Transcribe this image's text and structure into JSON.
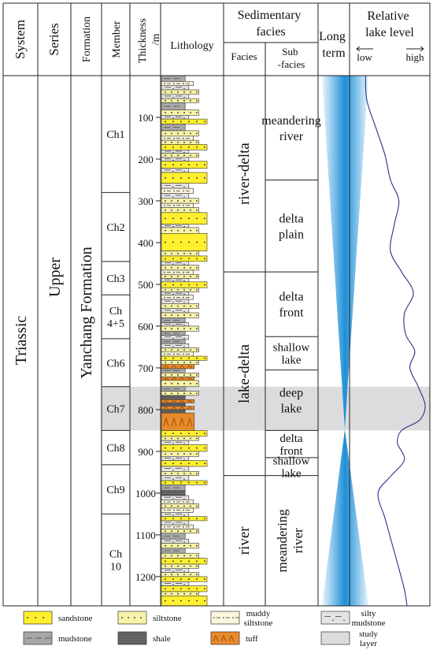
{
  "headers": {
    "system": "System",
    "series": "Series",
    "formation": "Formation",
    "member": "Member",
    "thickness": "Thickness /m",
    "lithology": "Lithology",
    "sedimentary_facies": "Sedimentary facies",
    "facies": "Facies",
    "sub_facies": "Sub -facies",
    "long_term": "Long term",
    "relative_lake_level": "Relative lake level",
    "low": "low",
    "high": "high"
  },
  "system": "Triassic",
  "series": "Upper",
  "formation": "Yanchang Formation",
  "members": [
    {
      "label": "Ch1",
      "top_m": 0,
      "base_m": 280
    },
    {
      "label": "Ch2",
      "top_m": 280,
      "base_m": 445
    },
    {
      "label": "Ch3",
      "top_m": 445,
      "base_m": 525
    },
    {
      "label": "Ch 4+5",
      "top_m": 525,
      "base_m": 630
    },
    {
      "label": "Ch6",
      "top_m": 630,
      "base_m": 745
    },
    {
      "label": "Ch7",
      "top_m": 745,
      "base_m": 850
    },
    {
      "label": "Ch8",
      "top_m": 850,
      "base_m": 932
    },
    {
      "label": "Ch9",
      "top_m": 932,
      "base_m": 1050
    },
    {
      "label": "Ch 10",
      "top_m": 1050,
      "base_m": 1270
    }
  ],
  "depth_ticks": [
    100,
    200,
    300,
    400,
    500,
    600,
    700,
    800,
    900,
    1000,
    1100,
    1200
  ],
  "facies": [
    {
      "label": "river-delta",
      "top_m": 0,
      "base_m": 470
    },
    {
      "label": "lake-delta",
      "top_m": 470,
      "base_m": 958
    },
    {
      "label": "river",
      "top_m": 958,
      "base_m": 1270
    }
  ],
  "subfacies": [
    {
      "label": "meandering river",
      "top_m": 0,
      "base_m": 250
    },
    {
      "label": "delta plain",
      "top_m": 250,
      "base_m": 470
    },
    {
      "label": "delta front",
      "top_m": 470,
      "base_m": 625
    },
    {
      "label": "shallow lake",
      "top_m": 625,
      "base_m": 705
    },
    {
      "label": "deep lake",
      "top_m": 705,
      "base_m": 850
    },
    {
      "label": "delta front",
      "top_m": 850,
      "base_m": 915
    },
    {
      "label": "shallow lake",
      "top_m": 915,
      "base_m": 958
    },
    {
      "label": "meandering river",
      "top_m": 958,
      "base_m": 1270
    }
  ],
  "study_layer": {
    "top_m": 745,
    "base_m": 850
  },
  "lake_level": [
    [
      0,
      0.14
    ],
    [
      60,
      0.16
    ],
    [
      130,
      0.3
    ],
    [
      190,
      0.42
    ],
    [
      250,
      0.5
    ],
    [
      300,
      0.62
    ],
    [
      360,
      0.55
    ],
    [
      420,
      0.5
    ],
    [
      470,
      0.66
    ],
    [
      520,
      0.83
    ],
    [
      570,
      0.7
    ],
    [
      620,
      0.72
    ],
    [
      660,
      0.85
    ],
    [
      700,
      0.78
    ],
    [
      745,
      0.9
    ],
    [
      790,
      1.0
    ],
    [
      825,
      0.92
    ],
    [
      850,
      0.66
    ],
    [
      880,
      0.6
    ],
    [
      920,
      0.7
    ],
    [
      960,
      0.5
    ],
    [
      1000,
      0.32
    ],
    [
      1060,
      0.42
    ],
    [
      1120,
      0.52
    ],
    [
      1180,
      0.62
    ],
    [
      1230,
      0.7
    ],
    [
      1270,
      0.74
    ]
  ],
  "lithology_types": {
    "sandstone": "#ffef2e",
    "siltstone": "#f7f3a8",
    "muddy_siltstone": "#faf7dc",
    "silty_mudstone": "#e4e4e4",
    "mudstone": "#a7a7a7",
    "shale": "#6c6c6c",
    "tuff": "#e98a2a"
  },
  "lithology_beds": [
    {
      "type": "mudstone",
      "top_m": 0,
      "base_m": 14
    },
    {
      "type": "muddy_siltstone",
      "top_m": 14,
      "base_m": 24
    },
    {
      "type": "silty_mudstone",
      "top_m": 24,
      "base_m": 34
    },
    {
      "type": "siltstone",
      "top_m": 34,
      "base_m": 45
    },
    {
      "type": "silty_mudstone",
      "top_m": 45,
      "base_m": 55
    },
    {
      "type": "siltstone",
      "top_m": 55,
      "base_m": 65
    },
    {
      "type": "mudstone",
      "top_m": 65,
      "base_m": 82
    },
    {
      "type": "siltstone",
      "top_m": 82,
      "base_m": 95
    },
    {
      "type": "silty_mudstone",
      "top_m": 95,
      "base_m": 104
    },
    {
      "type": "sandstone",
      "top_m": 104,
      "base_m": 116
    },
    {
      "type": "mudstone",
      "top_m": 116,
      "base_m": 132
    },
    {
      "type": "siltstone",
      "top_m": 132,
      "base_m": 145
    },
    {
      "type": "muddy_siltstone",
      "top_m": 145,
      "base_m": 155
    },
    {
      "type": "siltstone",
      "top_m": 155,
      "base_m": 165
    },
    {
      "type": "sandstone",
      "top_m": 165,
      "base_m": 178
    },
    {
      "type": "silty_mudstone",
      "top_m": 178,
      "base_m": 186
    },
    {
      "type": "siltstone",
      "top_m": 186,
      "base_m": 196
    },
    {
      "type": "silty_mudstone",
      "top_m": 196,
      "base_m": 205
    },
    {
      "type": "sandstone",
      "top_m": 205,
      "base_m": 222
    },
    {
      "type": "silty_mudstone",
      "top_m": 222,
      "base_m": 232
    },
    {
      "type": "sandstone",
      "top_m": 232,
      "base_m": 258
    },
    {
      "type": "silty_mudstone",
      "top_m": 258,
      "base_m": 270
    },
    {
      "type": "muddy_siltstone",
      "top_m": 270,
      "base_m": 282
    },
    {
      "type": "silty_mudstone",
      "top_m": 282,
      "base_m": 294
    },
    {
      "type": "siltstone",
      "top_m": 294,
      "base_m": 306
    },
    {
      "type": "muddy_siltstone",
      "top_m": 306,
      "base_m": 316
    },
    {
      "type": "siltstone",
      "top_m": 316,
      "base_m": 328
    },
    {
      "type": "sandstone",
      "top_m": 328,
      "base_m": 356
    },
    {
      "type": "silty_mudstone",
      "top_m": 356,
      "base_m": 364
    },
    {
      "type": "siltstone",
      "top_m": 364,
      "base_m": 378
    },
    {
      "type": "sandstone",
      "top_m": 378,
      "base_m": 420
    },
    {
      "type": "siltstone",
      "top_m": 420,
      "base_m": 432
    },
    {
      "type": "sandstone",
      "top_m": 432,
      "base_m": 445
    },
    {
      "type": "silty_mudstone",
      "top_m": 445,
      "base_m": 454
    },
    {
      "type": "siltstone",
      "top_m": 454,
      "base_m": 466
    },
    {
      "type": "muddy_siltstone",
      "top_m": 466,
      "base_m": 476
    },
    {
      "type": "siltstone",
      "top_m": 476,
      "base_m": 486
    },
    {
      "type": "silty_mudstone",
      "top_m": 486,
      "base_m": 494
    },
    {
      "type": "sandstone",
      "top_m": 494,
      "base_m": 508
    },
    {
      "type": "siltstone",
      "top_m": 508,
      "base_m": 518
    },
    {
      "type": "silty_mudstone",
      "top_m": 518,
      "base_m": 526
    },
    {
      "type": "muddy_siltstone",
      "top_m": 526,
      "base_m": 536
    },
    {
      "type": "silty_mudstone",
      "top_m": 536,
      "base_m": 546
    },
    {
      "type": "siltstone",
      "top_m": 546,
      "base_m": 558
    },
    {
      "type": "silty_mudstone",
      "top_m": 558,
      "base_m": 568
    },
    {
      "type": "siltstone",
      "top_m": 568,
      "base_m": 580
    },
    {
      "type": "mudstone",
      "top_m": 580,
      "base_m": 592
    },
    {
      "type": "silty_mudstone",
      "top_m": 592,
      "base_m": 600
    },
    {
      "type": "siltstone",
      "top_m": 600,
      "base_m": 612
    },
    {
      "type": "mudstone",
      "top_m": 612,
      "base_m": 622
    },
    {
      "type": "silty_mudstone",
      "top_m": 622,
      "base_m": 632
    },
    {
      "type": "mudstone",
      "top_m": 632,
      "base_m": 642
    },
    {
      "type": "silty_mudstone",
      "top_m": 642,
      "base_m": 652
    },
    {
      "type": "siltstone",
      "top_m": 652,
      "base_m": 662
    },
    {
      "type": "muddy_siltstone",
      "top_m": 662,
      "base_m": 672
    },
    {
      "type": "sandstone",
      "top_m": 672,
      "base_m": 682
    },
    {
      "type": "siltstone",
      "top_m": 682,
      "base_m": 692
    },
    {
      "type": "tuff",
      "top_m": 692,
      "base_m": 702
    },
    {
      "type": "mudstone",
      "top_m": 702,
      "base_m": 712
    },
    {
      "type": "siltstone",
      "top_m": 712,
      "base_m": 722
    },
    {
      "type": "tuff",
      "top_m": 722,
      "base_m": 730
    },
    {
      "type": "siltstone",
      "top_m": 730,
      "base_m": 745
    },
    {
      "type": "mudstone",
      "top_m": 745,
      "base_m": 756
    },
    {
      "type": "siltstone",
      "top_m": 756,
      "base_m": 766
    },
    {
      "type": "shale",
      "top_m": 766,
      "base_m": 776
    },
    {
      "type": "tuff",
      "top_m": 776,
      "base_m": 784
    },
    {
      "type": "shale",
      "top_m": 784,
      "base_m": 792
    },
    {
      "type": "tuff",
      "top_m": 792,
      "base_m": 800
    },
    {
      "type": "shale",
      "top_m": 800,
      "base_m": 808
    },
    {
      "type": "tuff",
      "top_m": 808,
      "base_m": 850
    },
    {
      "type": "sandstone",
      "top_m": 850,
      "base_m": 864
    },
    {
      "type": "siltstone",
      "top_m": 864,
      "base_m": 874
    },
    {
      "type": "silty_mudstone",
      "top_m": 874,
      "base_m": 884
    },
    {
      "type": "sandstone",
      "top_m": 884,
      "base_m": 900
    },
    {
      "type": "siltstone",
      "top_m": 900,
      "base_m": 912
    },
    {
      "type": "silty_mudstone",
      "top_m": 912,
      "base_m": 922
    },
    {
      "type": "sandstone",
      "top_m": 922,
      "base_m": 936
    },
    {
      "type": "silty_mudstone",
      "top_m": 936,
      "base_m": 948
    },
    {
      "type": "siltstone",
      "top_m": 948,
      "base_m": 958
    },
    {
      "type": "silty_mudstone",
      "top_m": 958,
      "base_m": 970
    },
    {
      "type": "sandstone",
      "top_m": 970,
      "base_m": 980
    },
    {
      "type": "mudstone",
      "top_m": 980,
      "base_m": 994
    },
    {
      "type": "shale",
      "top_m": 994,
      "base_m": 1006
    },
    {
      "type": "silty_mudstone",
      "top_m": 1006,
      "base_m": 1016
    },
    {
      "type": "muddy_siltstone",
      "top_m": 1016,
      "base_m": 1026
    },
    {
      "type": "siltstone",
      "top_m": 1026,
      "base_m": 1036
    },
    {
      "type": "muddy_siltstone",
      "top_m": 1036,
      "base_m": 1046
    },
    {
      "type": "silty_mudstone",
      "top_m": 1046,
      "base_m": 1056
    },
    {
      "type": "sandstone",
      "top_m": 1056,
      "base_m": 1066
    },
    {
      "type": "silty_mudstone",
      "top_m": 1066,
      "base_m": 1076
    },
    {
      "type": "muddy_siltstone",
      "top_m": 1076,
      "base_m": 1086
    },
    {
      "type": "siltstone",
      "top_m": 1086,
      "base_m": 1096
    },
    {
      "type": "mudstone",
      "top_m": 1096,
      "base_m": 1110
    },
    {
      "type": "silty_mudstone",
      "top_m": 1110,
      "base_m": 1120
    },
    {
      "type": "siltstone",
      "top_m": 1120,
      "base_m": 1132
    },
    {
      "type": "mudstone",
      "top_m": 1132,
      "base_m": 1144
    },
    {
      "type": "siltstone",
      "top_m": 1144,
      "base_m": 1156
    },
    {
      "type": "sandstone",
      "top_m": 1156,
      "base_m": 1170
    },
    {
      "type": "siltstone",
      "top_m": 1170,
      "base_m": 1180
    },
    {
      "type": "silty_mudstone",
      "top_m": 1180,
      "base_m": 1190
    },
    {
      "type": "siltstone",
      "top_m": 1190,
      "base_m": 1200
    },
    {
      "type": "sandstone",
      "top_m": 1200,
      "base_m": 1212
    },
    {
      "type": "silty_mudstone",
      "top_m": 1212,
      "base_m": 1222
    },
    {
      "type": "sandstone",
      "top_m": 1222,
      "base_m": 1236
    },
    {
      "type": "siltstone",
      "top_m": 1236,
      "base_m": 1246
    },
    {
      "type": "sandstone",
      "top_m": 1246,
      "base_m": 1270
    }
  ],
  "legend": [
    {
      "type": "sandstone",
      "label": "sandstone"
    },
    {
      "type": "siltstone",
      "label": "siltstone"
    },
    {
      "type": "muddy_siltstone",
      "label": "muddy siltstone"
    },
    {
      "type": "silty_mudstone",
      "label": "silty mudstone"
    },
    {
      "type": "mudstone",
      "label": "mudstone"
    },
    {
      "type": "shale",
      "label": "shale"
    },
    {
      "type": "tuff",
      "label": "tuff"
    },
    {
      "type": "study_layer",
      "label": "study layer"
    }
  ],
  "colors": {
    "study_layer": "#dcdcde",
    "long_term_dark": "#1e8fd8",
    "long_term_light": "#e9f5fd",
    "lake_curve": "#2b2f8c"
  }
}
